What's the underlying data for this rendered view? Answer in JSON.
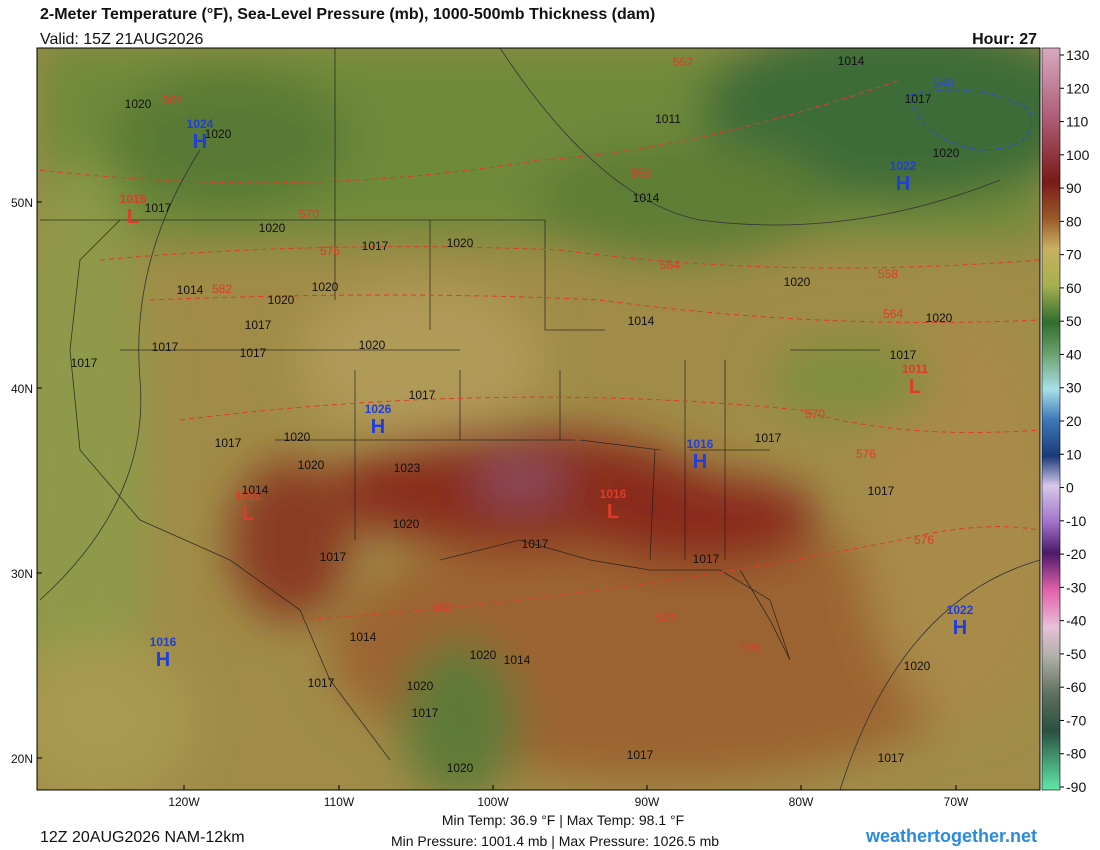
{
  "header": {
    "title": "2-Meter Temperature (°F), Sea-Level Pressure (mb), 1000-500mb Thickness (dam)",
    "valid": "Valid: 15Z 21AUG2026",
    "hour": "Hour: 27"
  },
  "colorbar": {
    "ticks": [
      130,
      120,
      110,
      100,
      90,
      80,
      70,
      60,
      50,
      40,
      30,
      20,
      10,
      0,
      -10,
      -20,
      -30,
      -40,
      -50,
      -60,
      -70,
      -80,
      -90
    ]
  },
  "lat_labels": [
    "50N",
    "40N",
    "30N",
    "20N"
  ],
  "lon_labels": [
    "120W",
    "110W",
    "100W",
    "90W",
    "80W",
    "70W"
  ],
  "pressure_centers": [
    {
      "type": "H",
      "value": "1024"
    },
    {
      "type": "L",
      "value": "1015"
    },
    {
      "type": "H",
      "value": "1026"
    },
    {
      "type": "L",
      "value": "1011"
    },
    {
      "type": "L",
      "value": "1016"
    },
    {
      "type": "H",
      "value": "1016"
    },
    {
      "type": "L",
      "value": "1011"
    },
    {
      "type": "H",
      "value": "1022"
    },
    {
      "type": "H",
      "value": "1022"
    },
    {
      "type": "H",
      "value": "1016"
    }
  ],
  "isobar_labels": [
    "1020",
    "1020",
    "1017",
    "1020",
    "1017",
    "1020",
    "1014",
    "1020",
    "1020",
    "1017",
    "1017",
    "1017",
    "1017",
    "1020",
    "1017",
    "1017",
    "1020",
    "1020",
    "1023",
    "1014",
    "1020",
    "1017",
    "1017",
    "1014",
    "1020",
    "1014",
    "1020",
    "1017",
    "1017",
    "1020",
    "1017",
    "1017",
    "1020",
    "1017",
    "1017",
    "1017",
    "1020",
    "1020",
    "1014",
    "1014",
    "1011",
    "1014",
    "1017",
    "1020",
    "1017"
  ],
  "thickness_labels": [
    "552",
    "540",
    "564",
    "570",
    "576",
    "582",
    "558",
    "564",
    "558",
    "564",
    "570",
    "576",
    "576",
    "582",
    "576",
    "576"
  ],
  "footer": {
    "run": "12Z 20AUG2026 NAM-12km",
    "temp_range": "Min Temp:  36.9 °F | Max Temp:  98.1 °F",
    "pressure_range": "Min Pressure: 1001.4 mb | Max Pressure: 1026.5 mb",
    "site": "weathertogether.net"
  }
}
